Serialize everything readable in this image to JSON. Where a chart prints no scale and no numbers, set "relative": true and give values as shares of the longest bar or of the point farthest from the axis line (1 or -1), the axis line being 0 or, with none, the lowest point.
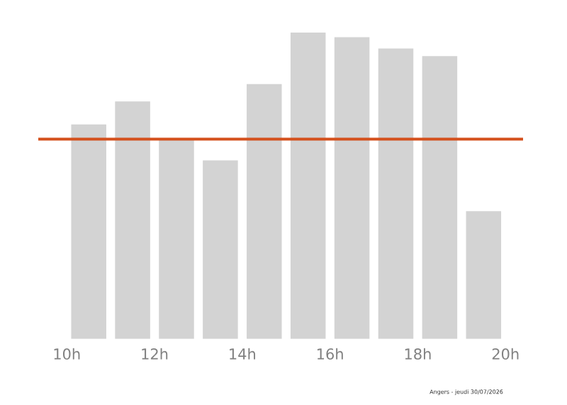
{
  "chart_data": {
    "type": "bar",
    "relative": true,
    "x": [
      10.5,
      11.5,
      12.5,
      13.5,
      14.5,
      15.5,
      16.5,
      17.5,
      18.5,
      19.5
    ],
    "values": [
      0.7,
      0.775,
      0.649,
      0.583,
      0.832,
      1,
      0.985,
      0.948,
      0.923,
      0.417
    ],
    "color": "#d3d3d3",
    "xlim": [
      9.35,
      20.4
    ],
    "xticks": [
      {
        "value": 10,
        "label": "10h"
      },
      {
        "value": 12,
        "label": "12h"
      },
      {
        "value": 14,
        "label": "14h"
      },
      {
        "value": 16,
        "label": "16h"
      },
      {
        "value": 18,
        "label": "18h"
      },
      {
        "value": 20,
        "label": "20h"
      }
    ],
    "ref_lines": [
      {
        "axis": "y",
        "value": 0.652,
        "color": "#d4501c"
      }
    ],
    "annotations": [
      "Angers - jeudi 30/07/2026"
    ],
    "grid": false
  }
}
